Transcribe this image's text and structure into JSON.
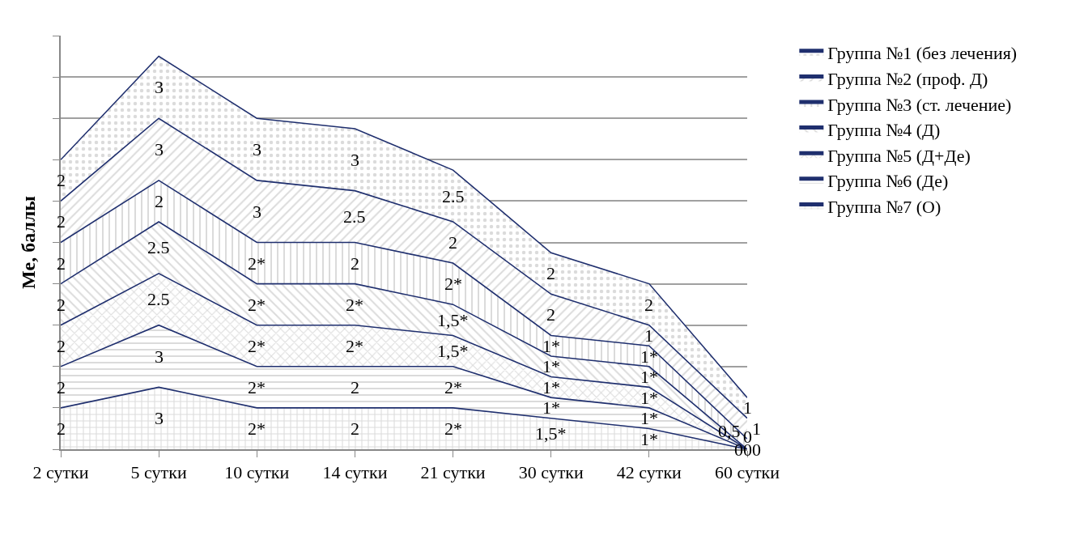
{
  "chart_data": {
    "type": "area",
    "stacked": true,
    "ylabel": "Me, баллы",
    "categories": [
      "2 сутки",
      "5 сутки",
      "10 сутки",
      "14 сутки",
      "21 сутки",
      "30 сутки",
      "42 сутки",
      "60 сутки"
    ],
    "ylim": [
      0,
      20
    ],
    "yticks": [
      {
        "value": 0,
        "label": null
      },
      {
        "value": 2,
        "label": null
      },
      {
        "value": 4,
        "label": null
      },
      {
        "value": 6,
        "label": null
      },
      {
        "value": 8,
        "label": null
      },
      {
        "value": 10,
        "label": null
      },
      {
        "value": 12,
        "label": null
      },
      {
        "value": 14,
        "label": null
      },
      {
        "value": 16,
        "label": null
      },
      {
        "value": 18,
        "label": null
      },
      {
        "value": 20,
        "label": null
      }
    ],
    "tick_labels": "x",
    "grid": "y",
    "legend": "top right",
    "series": [
      {
        "name": "Группа №7 (О)",
        "color": "#1f2f6e",
        "values": [
          2,
          3,
          2,
          2,
          2,
          1.5,
          1,
          0
        ],
        "value_labels": [
          "2",
          "3",
          "2*",
          "2",
          "2*",
          "1,5*",
          "1*",
          "0"
        ]
      },
      {
        "name": "Группа №6 (Де)",
        "color": "#1f2f6e",
        "values": [
          2,
          3,
          2,
          2,
          2,
          1,
          1,
          0
        ],
        "value_labels": [
          "2",
          "3",
          "2*",
          "2",
          "2*",
          "1*",
          "1*",
          "0"
        ]
      },
      {
        "name": "Группа №5 (Д+Де)",
        "color": "#1f2f6e",
        "values": [
          2,
          2.5,
          2,
          2,
          1.5,
          1,
          1,
          0
        ],
        "value_labels": [
          "2",
          "2.5",
          "2*",
          "2*",
          "1,5*",
          "1*",
          "1*",
          "0"
        ]
      },
      {
        "name": "Группа №4 (Д)",
        "color": "#1f2f6e",
        "values": [
          2,
          2.5,
          2,
          2,
          1.5,
          1,
          1,
          0
        ],
        "value_labels": [
          "2",
          "2.5",
          "2*",
          "2*",
          "1,5*",
          "1*",
          "1*",
          "0"
        ]
      },
      {
        "name": "Группа №3 (ст. лечение)",
        "color": "#1f2f6e",
        "values": [
          2,
          2,
          2,
          2,
          2,
          1,
          1,
          0.5
        ],
        "value_labels": [
          "2",
          "2",
          "2*",
          "2",
          "2*",
          "1*",
          "1*",
          "0,5"
        ]
      },
      {
        "name": "Группа №2 (проф. Д)",
        "color": "#1f2f6e",
        "values": [
          2,
          3,
          3,
          2.5,
          2,
          2,
          1,
          1
        ],
        "value_labels": [
          "2",
          "3",
          "3",
          "2.5",
          "2",
          "2",
          "1",
          "1"
        ]
      },
      {
        "name": "Группа №1 (без лечения)",
        "color": "#1f2f6e",
        "values": [
          2,
          3,
          3,
          3,
          2.5,
          2,
          2,
          1
        ],
        "value_labels": [
          "2",
          "3",
          "3",
          "3",
          "2.5",
          "2",
          "2",
          "1"
        ]
      }
    ]
  }
}
